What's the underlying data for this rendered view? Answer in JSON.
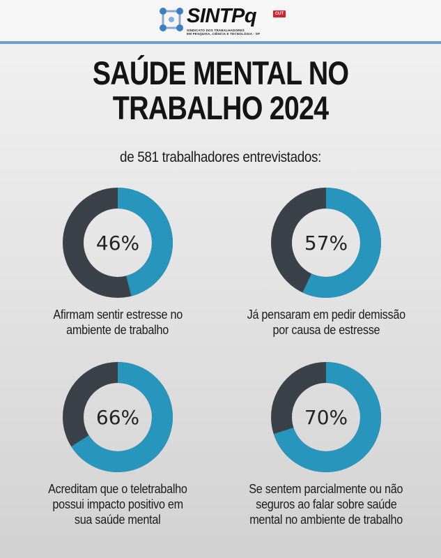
{
  "header": {
    "logo_name": "SINTPq",
    "logo_badge": "CUT",
    "logo_sub_line1": "SINDICATO DOS TRABALHADORES",
    "logo_sub_line2": "EM PESQUISA, CIÊNCIA E TECNOLOGIA - SP"
  },
  "colors": {
    "accent": "#2896bc",
    "remainder": "#3b4148",
    "header_line": "#6e9ed6"
  },
  "chart_data": {
    "type": "pie",
    "variant": "donut",
    "title_line1": "SAÚDE MENTAL NO",
    "title_line2": "TRABALHO 2024",
    "subtitle": "de 581 trabalhadores entrevistados:",
    "items": [
      {
        "value": 46,
        "value_label": "46%",
        "label_line1": "Afirmam sentir estresse no",
        "label_line2": "ambiente de trabalho",
        "label_line3": ""
      },
      {
        "value": 57,
        "value_label": "57%",
        "label_line1": "Já pensaram em pedir demissão",
        "label_line2": "por causa de estresse",
        "label_line3": ""
      },
      {
        "value": 66,
        "value_label": "66%",
        "label_line1": "Acreditam que o teletrabalho",
        "label_line2": "possui impacto positivo em",
        "label_line3": "sua saúde mental"
      },
      {
        "value": 70,
        "value_label": "70%",
        "label_line1": "Se sentem parcialmente ou não",
        "label_line2": "seguros ao falar sobre saúde",
        "label_line3": "mental no ambiente de trabalho"
      }
    ]
  }
}
